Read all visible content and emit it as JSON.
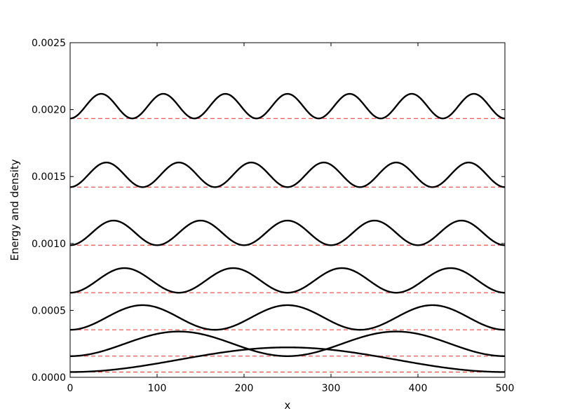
{
  "chart_data": {
    "type": "line",
    "xlabel": "x",
    "ylabel": "Energy and density",
    "xlim": [
      0,
      500
    ],
    "ylim": [
      0,
      0.0025
    ],
    "grid": false,
    "legend": "none",
    "x_ticks": [
      0,
      100,
      200,
      300,
      400,
      500
    ],
    "x_tick_labels": [
      "0",
      "100",
      "200",
      "300",
      "400",
      "500"
    ],
    "y_ticks": [
      0,
      0.0005,
      0.001,
      0.0015,
      0.002,
      0.0025
    ],
    "y_tick_labels": [
      "0.0000",
      "0.0005",
      "0.0010",
      "0.0015",
      "0.0020",
      "0.0025"
    ],
    "density_amplitude": 0.000184,
    "series": [
      {
        "n": 1,
        "energy": 3.95e-05,
        "color": "#000000"
      },
      {
        "n": 2,
        "energy": 0.000158,
        "color": "#000000"
      },
      {
        "n": 3,
        "energy": 0.000355,
        "color": "#000000"
      },
      {
        "n": 4,
        "energy": 0.000632,
        "color": "#000000"
      },
      {
        "n": 5,
        "energy": 0.000987,
        "color": "#000000"
      },
      {
        "n": 6,
        "energy": 0.001421,
        "color": "#000000"
      },
      {
        "n": 7,
        "energy": 0.001934,
        "color": "#000000"
      }
    ],
    "energy_line_color": "#e03030",
    "density_line_color": "#000000"
  }
}
